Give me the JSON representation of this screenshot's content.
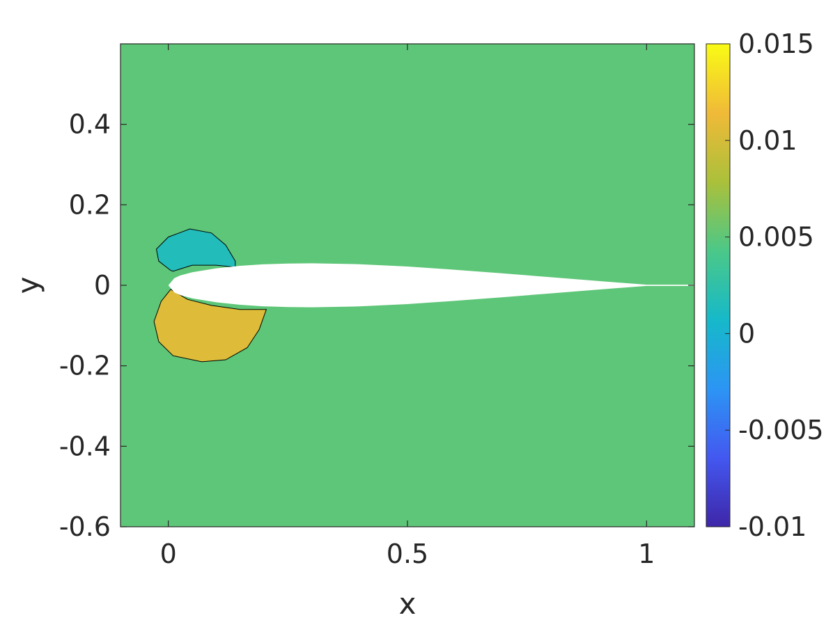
{
  "chart_data": {
    "type": "heatmap",
    "title": "",
    "xlabel": "x",
    "ylabel": "y",
    "xlim": [
      -0.1,
      1.1
    ],
    "ylim": [
      -0.6,
      0.6
    ],
    "xticks": [
      {
        "value": 0,
        "label": "0"
      },
      {
        "value": 0.5,
        "label": "0.5"
      },
      {
        "value": 1,
        "label": "1"
      }
    ],
    "yticks": [
      {
        "value": 0.4,
        "label": "0.4"
      },
      {
        "value": 0.2,
        "label": "0.2"
      },
      {
        "value": 0,
        "label": "0"
      },
      {
        "value": -0.2,
        "label": "-0.2"
      },
      {
        "value": -0.4,
        "label": "-0.4"
      },
      {
        "value": -0.6,
        "label": "-0.6"
      }
    ],
    "background_value": 0.005,
    "regions": [
      {
        "name": "upper-lobe",
        "value": 0.0015,
        "polygon": [
          [
            0.005,
            0.037
          ],
          [
            -0.02,
            0.06
          ],
          [
            -0.025,
            0.09
          ],
          [
            0.0,
            0.12
          ],
          [
            0.045,
            0.14
          ],
          [
            0.09,
            0.13
          ],
          [
            0.12,
            0.1
          ],
          [
            0.14,
            0.06
          ],
          [
            0.14,
            0.045
          ],
          [
            0.1,
            0.05
          ],
          [
            0.05,
            0.05
          ],
          [
            0.01,
            0.035
          ]
        ]
      },
      {
        "name": "lower-lobe",
        "value": 0.0105,
        "polygon": [
          [
            0.005,
            -0.01
          ],
          [
            -0.015,
            -0.04
          ],
          [
            -0.03,
            -0.09
          ],
          [
            -0.02,
            -0.14
          ],
          [
            0.01,
            -0.175
          ],
          [
            0.07,
            -0.19
          ],
          [
            0.12,
            -0.185
          ],
          [
            0.165,
            -0.155
          ],
          [
            0.19,
            -0.11
          ],
          [
            0.205,
            -0.06
          ],
          [
            0.15,
            -0.06
          ],
          [
            0.09,
            -0.05
          ],
          [
            0.04,
            -0.035
          ]
        ]
      }
    ],
    "airfoil": {
      "upper": [
        [
          0,
          0
        ],
        [
          0.0125,
          0.0178
        ],
        [
          0.025,
          0.0244
        ],
        [
          0.05,
          0.0325
        ],
        [
          0.1,
          0.0422
        ],
        [
          0.15,
          0.0485
        ],
        [
          0.2,
          0.0522
        ],
        [
          0.25,
          0.0541
        ],
        [
          0.3,
          0.0546
        ],
        [
          0.4,
          0.0524
        ],
        [
          0.5,
          0.0466
        ],
        [
          0.6,
          0.0386
        ],
        [
          0.7,
          0.0296
        ],
        [
          0.8,
          0.0201
        ],
        [
          0.9,
          0.0106
        ],
        [
          1.0,
          0.0016
        ],
        [
          1.1,
          0.0016
        ]
      ],
      "lower": [
        [
          1.1,
          -0.0016
        ],
        [
          1.0,
          -0.0016
        ],
        [
          0.9,
          -0.0106
        ],
        [
          0.8,
          -0.0201
        ],
        [
          0.7,
          -0.0296
        ],
        [
          0.6,
          -0.0386
        ],
        [
          0.5,
          -0.0466
        ],
        [
          0.4,
          -0.0524
        ],
        [
          0.3,
          -0.0546
        ],
        [
          0.25,
          -0.0541
        ],
        [
          0.2,
          -0.0522
        ],
        [
          0.15,
          -0.0485
        ],
        [
          0.1,
          -0.0422
        ],
        [
          0.05,
          -0.0325
        ],
        [
          0.025,
          -0.0244
        ],
        [
          0.0125,
          -0.0178
        ],
        [
          0,
          0
        ]
      ]
    },
    "colorbar": {
      "range": [
        -0.01,
        0.015
      ],
      "ticks": [
        {
          "value": 0.015,
          "label": "0.015"
        },
        {
          "value": 0.01,
          "label": "0.01"
        },
        {
          "value": 0.005,
          "label": "0.005"
        },
        {
          "value": 0,
          "label": "0"
        },
        {
          "value": -0.005,
          "label": "-0.005"
        },
        {
          "value": -0.01,
          "label": "-0.01"
        }
      ],
      "colormap": [
        "#3e26a8",
        "#4358f0",
        "#2c95f4",
        "#16b9c9",
        "#4bc888",
        "#abc03a",
        "#f0ba38",
        "#f9fb15"
      ]
    },
    "grid": false
  }
}
